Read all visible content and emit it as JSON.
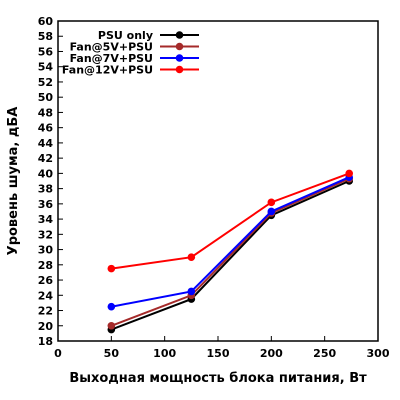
{
  "chart_data": {
    "type": "line",
    "xlabel": "Выходная мощность блока питания, Вт",
    "ylabel": "Уровень шума, дБА",
    "xlim": [
      0,
      300
    ],
    "ylim": [
      18,
      60
    ],
    "xticks": [
      0,
      50,
      100,
      150,
      200,
      250,
      300
    ],
    "yticks": [
      18,
      20,
      22,
      24,
      26,
      28,
      30,
      32,
      34,
      36,
      38,
      40,
      42,
      44,
      46,
      48,
      50,
      52,
      54,
      56,
      58,
      60
    ],
    "grid": false,
    "legend_position": "top-left",
    "x": [
      50,
      125,
      200,
      273
    ],
    "series": [
      {
        "name": "PSU only",
        "color": "#000000",
        "values": [
          19.5,
          23.5,
          34.5,
          39.0
        ]
      },
      {
        "name": "Fan@5V+PSU",
        "color": "#a52a2a",
        "values": [
          20.0,
          24.0,
          34.8,
          39.3
        ]
      },
      {
        "name": "Fan@7V+PSU",
        "color": "#0000ff",
        "values": [
          22.5,
          24.5,
          35.0,
          39.5
        ]
      },
      {
        "name": "Fan@12V+PSU",
        "color": "#ff0000",
        "values": [
          27.5,
          29.0,
          36.2,
          40.0
        ]
      }
    ]
  }
}
